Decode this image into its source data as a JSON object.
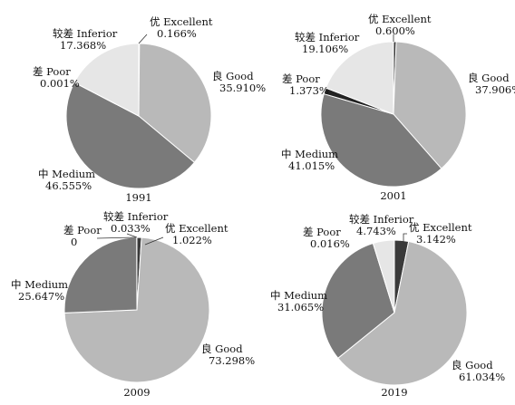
{
  "colors": {
    "excellent": "#3a3a3a",
    "good": "#b9b9b9",
    "medium": "#7a7a7a",
    "poor": "#222222",
    "inferior": "#e6e6e6",
    "stroke": "#ffffff",
    "leader": "#333333"
  },
  "chart_data": [
    {
      "type": "pie",
      "title": "1991",
      "slices": [
        {
          "key": "excellent",
          "label": "优 Excellent",
          "value": 0.166,
          "value_label": "0.166%"
        },
        {
          "key": "good",
          "label": "良 Good",
          "value": 35.91,
          "value_label": "35.910%"
        },
        {
          "key": "medium",
          "label": "中 Medium",
          "value": 46.555,
          "value_label": "46.555%"
        },
        {
          "key": "poor",
          "label": "差 Poor",
          "value": 0.001,
          "value_label": "0.001%"
        },
        {
          "key": "inferior",
          "label": "较差 Inferior",
          "value": 17.368,
          "value_label": "17.368%"
        }
      ]
    },
    {
      "type": "pie",
      "title": "2001",
      "slices": [
        {
          "key": "excellent",
          "label": "优 Excellent",
          "value": 0.6,
          "value_label": "0.600%"
        },
        {
          "key": "good",
          "label": "良 Good",
          "value": 37.906,
          "value_label": "37.906%"
        },
        {
          "key": "medium",
          "label": "中 Medium",
          "value": 41.015,
          "value_label": "41.015%"
        },
        {
          "key": "poor",
          "label": "差 Poor",
          "value": 1.373,
          "value_label": "1.373%"
        },
        {
          "key": "inferior",
          "label": "较差 Inferior",
          "value": 19.106,
          "value_label": "19.106%"
        }
      ]
    },
    {
      "type": "pie",
      "title": "2009",
      "slices": [
        {
          "key": "excellent",
          "label": "优 Excellent",
          "value": 1.022,
          "value_label": "1.022%"
        },
        {
          "key": "good",
          "label": "良 Good",
          "value": 73.298,
          "value_label": "73.298%"
        },
        {
          "key": "medium",
          "label": "中 Medium",
          "value": 25.647,
          "value_label": "25.647%"
        },
        {
          "key": "poor",
          "label": "差 Poor",
          "value": 0,
          "value_label": "0"
        },
        {
          "key": "inferior",
          "label": "较差 Inferior",
          "value": 0.033,
          "value_label": "0.033%"
        }
      ]
    },
    {
      "type": "pie",
      "title": "2019",
      "slices": [
        {
          "key": "excellent",
          "label": "优 Excellent",
          "value": 3.142,
          "value_label": "3.142%"
        },
        {
          "key": "good",
          "label": "良 Good",
          "value": 61.034,
          "value_label": "61.034%"
        },
        {
          "key": "medium",
          "label": "中 Medium",
          "value": 31.065,
          "value_label": "31.065%"
        },
        {
          "key": "poor",
          "label": "差 Poor",
          "value": 0.016,
          "value_label": "0.016%"
        },
        {
          "key": "inferior",
          "label": "较差 Inferior",
          "value": 4.743,
          "value_label": "4.743%"
        }
      ]
    }
  ]
}
